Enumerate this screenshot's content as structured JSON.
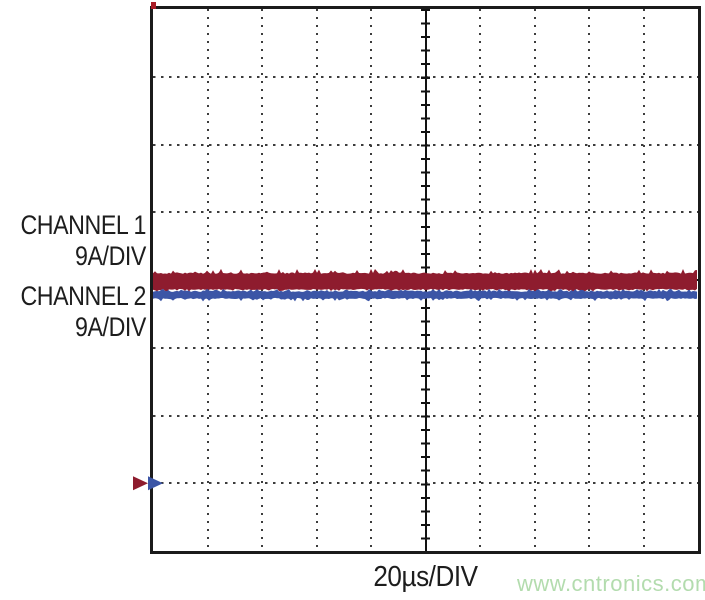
{
  "labels": {
    "channel1_name": "CHANNEL 1",
    "channel1_scale": "9A/DIV",
    "channel2_name": "CHANNEL 2",
    "channel2_scale": "9A/DIV",
    "timebase": "20µs/DIV",
    "watermark": "www.cntronics.com"
  },
  "colors": {
    "background": "#ffffff",
    "scope_border": "#1b1b1b",
    "grid_dots": "#3c3c3c",
    "axis": "#121212",
    "text": "#1d1d1d",
    "watermark_green": "#b3dcae",
    "channel1_red": "#8e1c2e",
    "channel2_blue": "#3b55a6",
    "trigger_mark_red": "#a81c26"
  },
  "chart_data": {
    "type": "line",
    "subtype": "oscilloscope",
    "title": "",
    "xlabel": "20µs/DIV",
    "ylabel": "",
    "x_divisions": 10,
    "y_divisions": 8,
    "minor_ticks_per_division": 5,
    "timebase_per_div": "20µs",
    "grid": "dotted with solid center axes",
    "series": [
      {
        "name": "CHANNEL 1",
        "scale_per_div": "9A/DIV",
        "color": "#8e1c2e",
        "waveform": "flat DC current trace with switching ripple noise",
        "y_center_div_from_top": 4.02,
        "ripple_thickness_div": 0.25
      },
      {
        "name": "CHANNEL 2",
        "scale_per_div": "9A/DIV",
        "color": "#3b55a6",
        "waveform": "flat DC current trace with switching ripple noise",
        "y_center_div_from_top": 4.22,
        "ripple_thickness_div": 0.12
      }
    ],
    "reference_markers": [
      {
        "channel": "CHANNEL 1",
        "color": "#8e1c2e",
        "y_div_from_top": 7.0,
        "shape": "right-pointing-triangle",
        "position": "left-edge"
      },
      {
        "channel": "CHANNEL 2",
        "color": "#3b55a6",
        "y_div_from_top": 7.0,
        "shape": "right-pointing-triangle",
        "position": "left-edge"
      }
    ],
    "trigger_mark": {
      "color": "#a81c26",
      "position": "top-left-corner"
    }
  }
}
